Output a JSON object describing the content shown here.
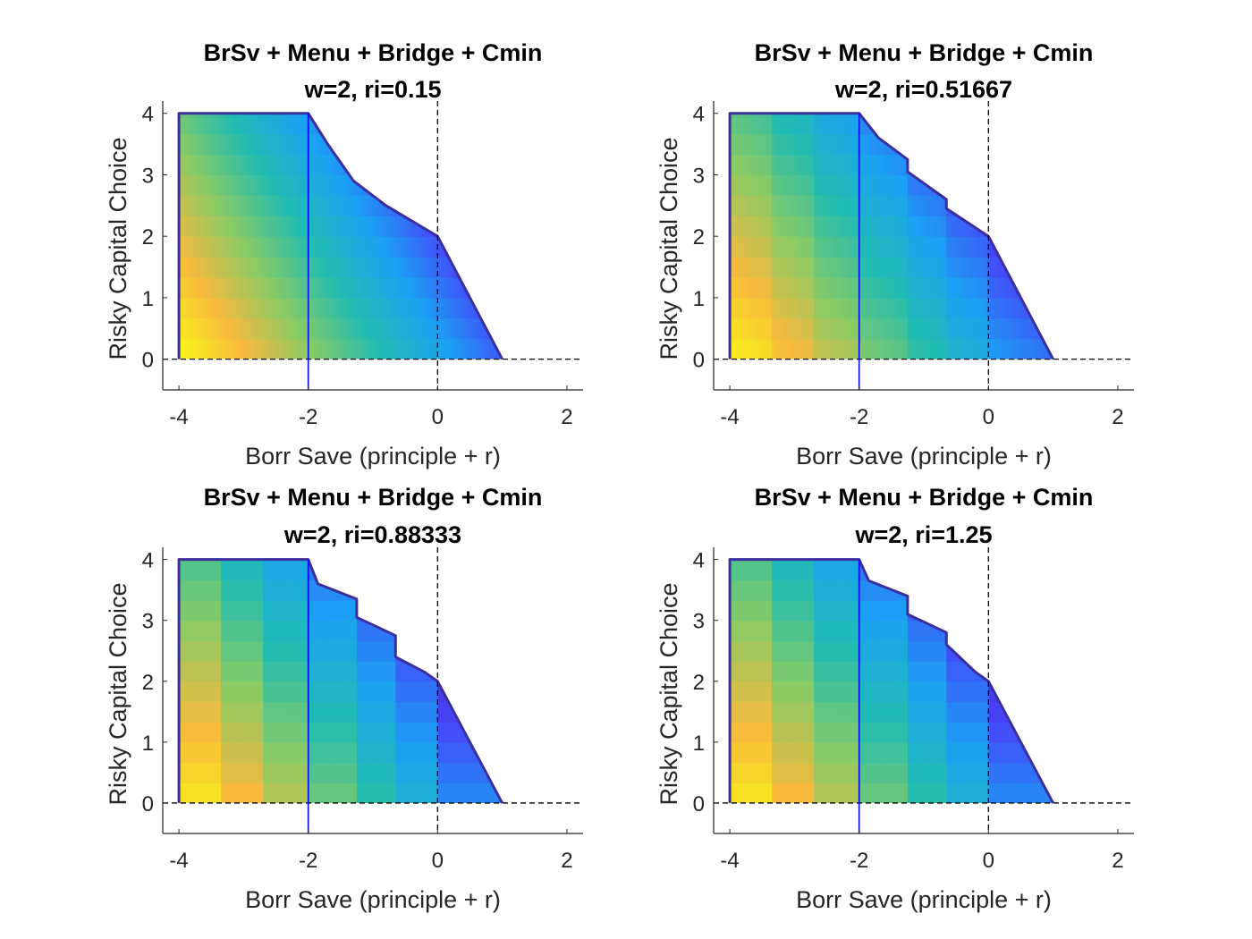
{
  "figure": {
    "colors": {
      "axis": "#262626",
      "ref_line": "#000000",
      "bound_line": "#0000ff",
      "colormap": [
        "#3e26a8",
        "#4743f8",
        "#1ba1f4",
        "#20bcb2",
        "#88cb66",
        "#f8ba3d",
        "#f9fb15"
      ]
    }
  },
  "chart_data": [
    {
      "type": "scatter",
      "title": "BrSv + Menu + Bridge + Cmin",
      "subtitle": "w=2, ri=0.15",
      "xlabel": "Borr Save (principle + r)",
      "ylabel": "Risky Capital Choice",
      "xlim": [
        -4.25,
        2.25
      ],
      "ylim": [
        -0.5,
        4.2
      ],
      "xticks": [
        -4,
        -2,
        0,
        2
      ],
      "xtick_labels": [
        "-4",
        "-2",
        "0",
        "2"
      ],
      "yticks": [
        0,
        1,
        2,
        3,
        4
      ],
      "ytick_labels": [
        "0",
        "1",
        "2",
        "3",
        "4"
      ],
      "feasible_boundary": {
        "x": [
          -4,
          -2,
          -1.7,
          -1.3,
          -0.8,
          0,
          1
        ],
        "y": [
          4,
          4,
          3.5,
          2.9,
          2.5,
          2.0,
          0
        ]
      },
      "color_banding": "smooth",
      "reference_lines": {
        "x_zero": 0,
        "y_zero": 0,
        "x_bound": -2
      },
      "grid": false
    },
    {
      "type": "scatter",
      "title": "BrSv + Menu + Bridge + Cmin",
      "subtitle": "w=2, ri=0.51667",
      "xlabel": "Borr Save (principle + r)",
      "ylabel": "Risky Capital Choice",
      "xlim": [
        -4.25,
        2.25
      ],
      "ylim": [
        -0.5,
        4.2
      ],
      "xticks": [
        -4,
        -2,
        0,
        2
      ],
      "xtick_labels": [
        "-4",
        "-2",
        "0",
        "2"
      ],
      "yticks": [
        0,
        1,
        2,
        3,
        4
      ],
      "ytick_labels": [
        "0",
        "1",
        "2",
        "3",
        "4"
      ],
      "feasible_boundary": {
        "x": [
          -4,
          -2,
          -1.7,
          -1.25,
          -1.25,
          -0.65,
          -0.65,
          0,
          1
        ],
        "y": [
          4,
          4,
          3.6,
          3.25,
          3.05,
          2.6,
          2.45,
          2.0,
          0
        ]
      },
      "color_banding": "mild",
      "reference_lines": {
        "x_zero": 0,
        "y_zero": 0,
        "x_bound": -2
      },
      "grid": false
    },
    {
      "type": "scatter",
      "title": "BrSv + Menu + Bridge + Cmin",
      "subtitle": "w=2, ri=0.88333",
      "xlabel": "Borr Save (principle + r)",
      "ylabel": "Risky Capital Choice",
      "xlim": [
        -4.25,
        2.25
      ],
      "ylim": [
        -0.5,
        4.2
      ],
      "xticks": [
        -4,
        -2,
        0,
        2
      ],
      "xtick_labels": [
        "-4",
        "-2",
        "0",
        "2"
      ],
      "yticks": [
        0,
        1,
        2,
        3,
        4
      ],
      "ytick_labels": [
        "0",
        "1",
        "2",
        "3",
        "4"
      ],
      "feasible_boundary": {
        "x": [
          -4,
          -2,
          -1.85,
          -1.25,
          -1.25,
          -0.65,
          -0.65,
          -0.2,
          0,
          1
        ],
        "y": [
          4,
          4,
          3.6,
          3.35,
          3.05,
          2.75,
          2.4,
          2.15,
          2.0,
          0
        ]
      },
      "color_banding": "strong",
      "reference_lines": {
        "x_zero": 0,
        "y_zero": 0,
        "x_bound": -2
      },
      "grid": false
    },
    {
      "type": "scatter",
      "title": "BrSv + Menu + Bridge + Cmin",
      "subtitle": "w=2, ri=1.25",
      "xlabel": "Borr Save (principle + r)",
      "ylabel": "Risky Capital Choice",
      "xlim": [
        -4.25,
        2.25
      ],
      "ylim": [
        -0.5,
        4.2
      ],
      "xticks": [
        -4,
        -2,
        0,
        2
      ],
      "xtick_labels": [
        "-4",
        "-2",
        "0",
        "2"
      ],
      "yticks": [
        0,
        1,
        2,
        3,
        4
      ],
      "ytick_labels": [
        "0",
        "1",
        "2",
        "3",
        "4"
      ],
      "feasible_boundary": {
        "x": [
          -4,
          -2,
          -1.85,
          -1.25,
          -1.25,
          -0.65,
          -0.65,
          -0.2,
          0,
          1
        ],
        "y": [
          4,
          4,
          3.65,
          3.4,
          3.1,
          2.8,
          2.6,
          2.15,
          2.0,
          0
        ]
      },
      "color_banding": "strong",
      "reference_lines": {
        "x_zero": 0,
        "y_zero": 0,
        "x_bound": -2
      },
      "grid": false
    }
  ]
}
